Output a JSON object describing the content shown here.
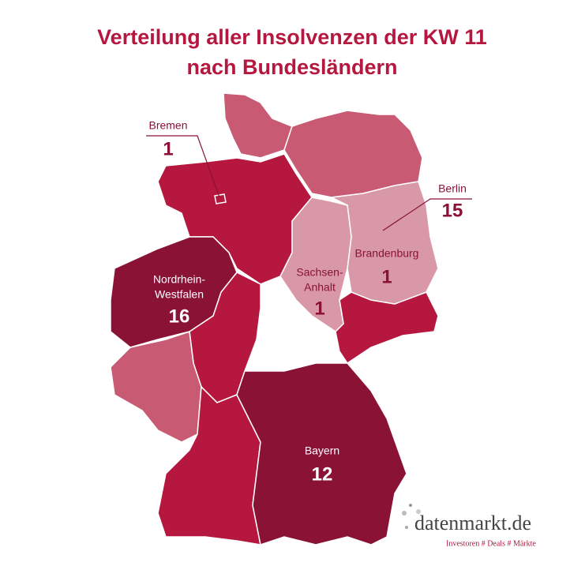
{
  "header": {
    "title_lines": [
      "Verteilung aller Insolvenzen der KW 11",
      "nach Bundesländern"
    ]
  },
  "regions": [
    {
      "name_lines": [
        "Bremen"
      ],
      "value": 1,
      "color": "#b5173f"
    },
    {
      "name_lines": [
        "Berlin"
      ],
      "value": 15,
      "color": "#8a1235"
    },
    {
      "name_lines": [
        "Brandenburg"
      ],
      "value": 1,
      "color": "#d898a8"
    },
    {
      "name_lines": [
        "Sachsen-",
        "Anhalt"
      ],
      "value": 1,
      "color": "#d898a8"
    },
    {
      "name_lines": [
        "Nordrhein-",
        "Westfalen"
      ],
      "value": 16,
      "color": "#8a1235"
    },
    {
      "name_lines": [
        "Bayern"
      ],
      "value": 12,
      "color": "#8a1235"
    }
  ],
  "logo": {
    "name": "datenmarkt.de",
    "tagline": "Investoren # Deals # Märkte"
  }
}
